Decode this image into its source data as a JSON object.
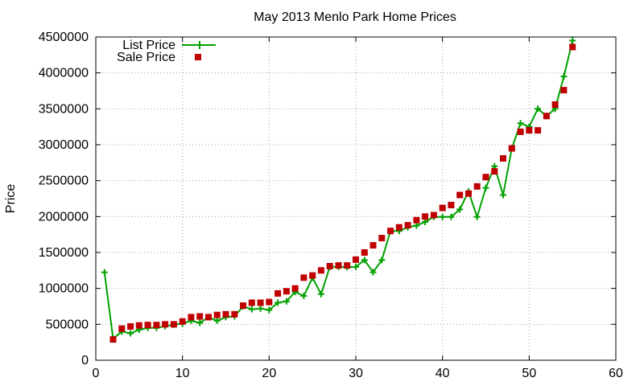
{
  "chart_data": {
    "type": "line",
    "title": "May 2013 Menlo Park Home Prices",
    "xlabel": "",
    "ylabel": "Price",
    "xlim": [
      0,
      60
    ],
    "ylim": [
      0,
      4500000
    ],
    "x_ticks": [
      "0",
      "10",
      "20",
      "30",
      "40",
      "50",
      "60"
    ],
    "y_ticks": [
      "0",
      "500000",
      "1000000",
      "1500000",
      "2000000",
      "2500000",
      "3000000",
      "3500000",
      "4000000",
      "4500000"
    ],
    "grid": true,
    "legend_position": "top-left",
    "colors": {
      "list": "#00a000",
      "sale": "#c00000",
      "grid": "#a0a0a0"
    },
    "series": [
      {
        "name": "List Price",
        "style": "line-with-plus-markers",
        "x": [
          1,
          2,
          3,
          4,
          5,
          6,
          7,
          8,
          9,
          10,
          11,
          12,
          13,
          14,
          15,
          16,
          17,
          18,
          19,
          20,
          21,
          22,
          23,
          24,
          25,
          26,
          27,
          28,
          29,
          30,
          31,
          32,
          33,
          34,
          35,
          36,
          37,
          38,
          39,
          40,
          41,
          42,
          43,
          44,
          45,
          46,
          47,
          48,
          49,
          50,
          51,
          52,
          53,
          54,
          55
        ],
        "values": [
          1225000,
          300000,
          400000,
          375000,
          425000,
          450000,
          450000,
          475000,
          495000,
          510000,
          550000,
          520000,
          600000,
          550000,
          600000,
          610000,
          750000,
          710000,
          720000,
          700000,
          800000,
          820000,
          950000,
          895000,
          1150000,
          920000,
          1300000,
          1300000,
          1295000,
          1300000,
          1395000,
          1225000,
          1395000,
          1800000,
          1800000,
          1850000,
          1875000,
          1925000,
          1995000,
          1995000,
          1995000,
          2100000,
          2350000,
          1995000,
          2400000,
          2700000,
          2300000,
          2950000,
          3300000,
          3250000,
          3500000,
          3400000,
          3500000,
          3950000,
          4450000
        ]
      },
      {
        "name": "Sale Price",
        "style": "square-markers",
        "x": [
          2,
          3,
          4,
          5,
          6,
          7,
          8,
          9,
          10,
          11,
          12,
          13,
          14,
          15,
          16,
          17,
          18,
          19,
          20,
          21,
          22,
          23,
          24,
          25,
          26,
          27,
          28,
          29,
          30,
          31,
          32,
          33,
          34,
          35,
          36,
          37,
          38,
          39,
          40,
          41,
          42,
          43,
          44,
          45,
          46,
          47,
          48,
          49,
          50,
          51,
          52,
          53,
          54,
          55
        ],
        "values": [
          290000,
          440000,
          470000,
          485000,
          490000,
          490000,
          500000,
          500000,
          540000,
          600000,
          610000,
          600000,
          630000,
          640000,
          640000,
          760000,
          800000,
          800000,
          810000,
          930000,
          960000,
          1000000,
          1150000,
          1180000,
          1250000,
          1310000,
          1320000,
          1320000,
          1400000,
          1500000,
          1600000,
          1700000,
          1800000,
          1850000,
          1880000,
          1950000,
          2000000,
          2020000,
          2120000,
          2160000,
          2300000,
          2320000,
          2420000,
          2550000,
          2630000,
          2810000,
          2950000,
          3180000,
          3200000,
          3200000,
          3400000,
          3560000,
          3760000,
          4360000
        ]
      }
    ]
  }
}
